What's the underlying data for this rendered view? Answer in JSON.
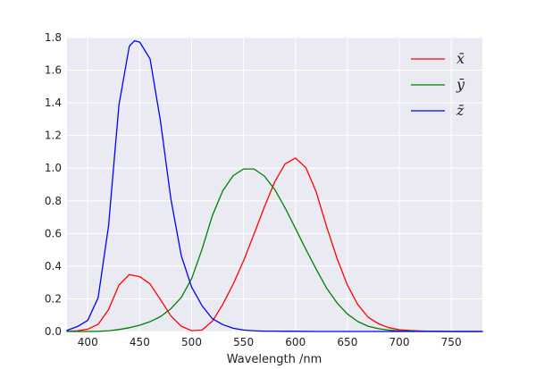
{
  "chart_data": {
    "type": "line",
    "title": "",
    "xlabel": "Wavelength /nm",
    "ylabel": "",
    "xlim": [
      380,
      780
    ],
    "ylim": [
      0,
      1.8
    ],
    "x_ticks": [
      400,
      450,
      500,
      550,
      600,
      650,
      700,
      750
    ],
    "y_ticks": [
      0.0,
      0.2,
      0.4,
      0.6,
      0.8,
      1.0,
      1.2,
      1.4,
      1.6,
      1.8
    ],
    "grid": true,
    "legend_position": "top-right",
    "series": [
      {
        "name": "x̄",
        "color": "#ff0000",
        "x": [
          380,
          390,
          400,
          410,
          420,
          430,
          440,
          450,
          460,
          470,
          480,
          490,
          500,
          510,
          520,
          530,
          540,
          550,
          560,
          570,
          580,
          590,
          600,
          610,
          620,
          630,
          640,
          650,
          660,
          670,
          680,
          690,
          700,
          710,
          720,
          730,
          740,
          750,
          760,
          770,
          780
        ],
        "y": [
          0.001,
          0.004,
          0.014,
          0.044,
          0.134,
          0.284,
          0.348,
          0.336,
          0.291,
          0.195,
          0.096,
          0.032,
          0.005,
          0.009,
          0.063,
          0.166,
          0.29,
          0.433,
          0.595,
          0.762,
          0.916,
          1.026,
          1.062,
          1.003,
          0.854,
          0.642,
          0.448,
          0.284,
          0.165,
          0.087,
          0.047,
          0.023,
          0.011,
          0.006,
          0.003,
          0.001,
          0.001,
          0.0,
          0.0,
          0.0,
          0.0
        ]
      },
      {
        "name": "ȳ",
        "color": "#008000",
        "x": [
          380,
          390,
          400,
          410,
          420,
          430,
          440,
          450,
          460,
          470,
          480,
          490,
          500,
          510,
          520,
          530,
          540,
          550,
          560,
          570,
          580,
          590,
          600,
          610,
          620,
          630,
          640,
          650,
          660,
          670,
          680,
          690,
          700,
          710,
          720,
          730,
          740,
          750,
          760,
          770,
          780
        ],
        "y": [
          0.0,
          0.0,
          0.0,
          0.001,
          0.004,
          0.012,
          0.023,
          0.038,
          0.06,
          0.091,
          0.139,
          0.208,
          0.323,
          0.503,
          0.71,
          0.862,
          0.954,
          0.995,
          0.995,
          0.952,
          0.87,
          0.757,
          0.631,
          0.503,
          0.381,
          0.265,
          0.175,
          0.107,
          0.061,
          0.032,
          0.017,
          0.008,
          0.004,
          0.002,
          0.001,
          0.001,
          0.0,
          0.0,
          0.0,
          0.0,
          0.0
        ]
      },
      {
        "name": "z̄",
        "color": "#0000ff",
        "x": [
          380,
          390,
          400,
          410,
          420,
          430,
          440,
          445,
          450,
          460,
          470,
          480,
          490,
          500,
          510,
          520,
          530,
          540,
          550,
          560,
          570,
          580,
          590,
          600,
          620,
          650,
          700,
          750,
          780
        ],
        "y": [
          0.007,
          0.03,
          0.068,
          0.207,
          0.646,
          1.386,
          1.747,
          1.78,
          1.772,
          1.669,
          1.288,
          0.813,
          0.465,
          0.272,
          0.158,
          0.078,
          0.042,
          0.02,
          0.009,
          0.004,
          0.002,
          0.002,
          0.001,
          0.001,
          0.0,
          0.0,
          0.0,
          0.0,
          0.0
        ]
      }
    ]
  }
}
